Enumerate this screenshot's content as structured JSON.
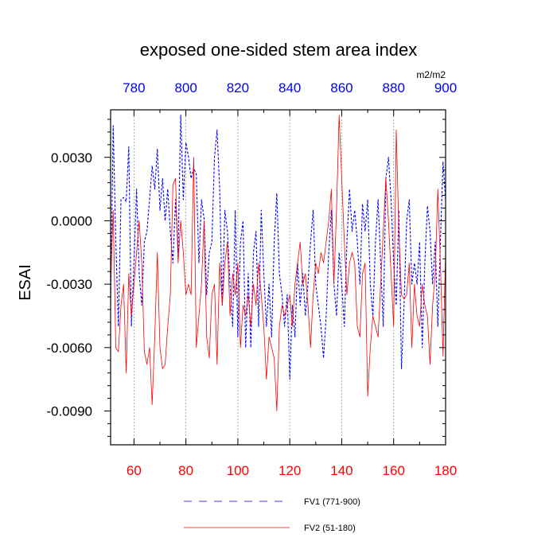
{
  "chart_data": {
    "type": "line",
    "title": "exposed one-sided stem area index",
    "ylabel": "ESAI",
    "units_label": "m2/m2",
    "bottom_axis": {
      "range": [
        51,
        180
      ],
      "ticks": [
        60,
        80,
        100,
        120,
        140,
        160,
        180
      ],
      "color": "#ff0000"
    },
    "top_axis": {
      "range": [
        771,
        900
      ],
      "ticks": [
        780,
        800,
        820,
        840,
        860,
        880,
        900
      ],
      "color": "#0000ff"
    },
    "ylim": [
      -0.0106,
      0.00525
    ],
    "yticks": [
      -0.009,
      -0.006,
      -0.003,
      0.0,
      0.003
    ],
    "ytick_labels": [
      "-0.0090",
      "-0.0060",
      "-0.0030",
      "0.0000",
      "0.0030"
    ],
    "series": [
      {
        "name": "FV1 (771-900)",
        "axis": "top",
        "color": "#0000ff",
        "style": "dashed",
        "x_start": 771,
        "values": [
          -0.004,
          0.0045,
          -0.001,
          -0.005,
          0.001,
          0.0011,
          0.0009,
          0.0035,
          -0.005,
          -0.002,
          0.0015,
          -0.0025,
          -0.004,
          -0.001,
          -0.0005,
          0.001,
          0.0026,
          0.0015,
          0.0034,
          0.0005,
          0.002,
          0.0,
          0.0015,
          -0.0005,
          -0.002,
          0.001,
          -0.0015,
          0.005,
          0.001,
          0.0037,
          0.003,
          0.002,
          0.0025,
          0.0022,
          -0.002,
          0.001,
          0.0001,
          -0.0035,
          -0.0015,
          -0.001,
          0.003,
          0.0043,
          0.0015,
          -0.004,
          0.0005,
          -0.0005,
          -0.003,
          -0.005,
          0.0005,
          -0.0055,
          -0.001,
          0.0,
          -0.006,
          -0.0025,
          -0.006,
          -0.0015,
          -0.0005,
          -0.005,
          0.0005,
          -0.0025,
          -0.005,
          -0.003,
          -0.0055,
          -0.001,
          0.0013,
          -0.0025,
          -0.0035,
          -0.005,
          -0.0035,
          -0.0075,
          -0.004,
          -0.0055,
          -0.002,
          -0.004,
          -0.0025,
          -0.0045,
          -0.003,
          -0.001,
          0.0005,
          -0.003,
          -0.004,
          -0.005,
          -0.0065,
          -0.0045,
          -0.0015,
          0.0005,
          -0.003,
          -0.0045,
          -0.0015,
          -0.003,
          -0.005,
          -0.001,
          0.0015,
          -0.0005,
          0.0005,
          -0.001,
          -0.003,
          0.0008,
          -0.0005,
          0.001,
          -0.003,
          -0.0045,
          -0.001,
          0.001,
          -0.002,
          -0.005,
          0.002,
          0.003,
          0.001,
          -0.002,
          -0.004,
          0.0005,
          -0.007,
          -0.004,
          0.0,
          0.001,
          -0.003,
          -0.002,
          -0.003,
          -0.001,
          -0.006,
          -0.002,
          0.0007,
          -0.0005,
          -0.003,
          -0.001,
          -0.005,
          -0.001,
          0.0028,
          0.001
        ]
      },
      {
        "name": "FV2 (51-180)",
        "axis": "bottom",
        "color": "#ff0000",
        "style": "solid",
        "x_start": 51,
        "values": [
          -0.003,
          0.0005,
          -0.006,
          -0.0062,
          -0.004,
          -0.003,
          -0.0072,
          -0.0025,
          -0.0045,
          -0.003,
          -0.0015,
          0.0,
          -0.002,
          -0.0062,
          -0.0068,
          -0.006,
          -0.0087,
          -0.0055,
          -0.0015,
          -0.006,
          -0.007,
          -0.0068,
          -0.005,
          -0.0035,
          0.0017,
          0.002,
          -0.002,
          0.0,
          -0.0015,
          -0.0035,
          -0.003,
          -0.0035,
          0.003,
          -0.006,
          -0.0045,
          -0.003,
          0.0,
          -0.0055,
          -0.0065,
          -0.0035,
          -0.003,
          -0.0068,
          -0.002,
          -0.004,
          -0.002,
          -0.001,
          -0.0045,
          -0.0025,
          -0.0035,
          -0.002,
          -0.006,
          -0.004,
          -0.0045,
          -0.0035,
          -0.005,
          -0.003,
          -0.004,
          -0.002,
          -0.0035,
          -0.005,
          -0.0075,
          -0.0055,
          -0.006,
          -0.0065,
          -0.009,
          -0.005,
          -0.004,
          -0.0045,
          -0.004,
          -0.0035,
          -0.005,
          -0.003,
          -0.002,
          -0.001,
          -0.003,
          -0.0025,
          -0.004,
          -0.006,
          -0.0035,
          -0.002,
          -0.0025,
          -0.0015,
          -0.002,
          -0.001,
          0.0,
          0.0015,
          -0.003,
          0.0005,
          0.005,
          0.002,
          -0.001,
          -0.0035,
          -0.002,
          -0.0015,
          -0.002,
          -0.005,
          -0.0055,
          -0.0025,
          -0.002,
          -0.0083,
          -0.006,
          -0.0045,
          -0.005,
          -0.0055,
          -0.003,
          -0.0005,
          0.002,
          0.0,
          -0.0025,
          -0.005,
          0.0043,
          -0.0005,
          -0.0035,
          -0.0037,
          -0.0035,
          -0.002,
          -0.006,
          -0.003,
          -0.0045,
          -0.005,
          -0.003,
          -0.004,
          -0.0045,
          -0.0068,
          -0.004,
          -0.0025,
          0.0015,
          -0.002,
          -0.0064,
          -0.0015
        ]
      }
    ],
    "legend_position": "bottom"
  }
}
